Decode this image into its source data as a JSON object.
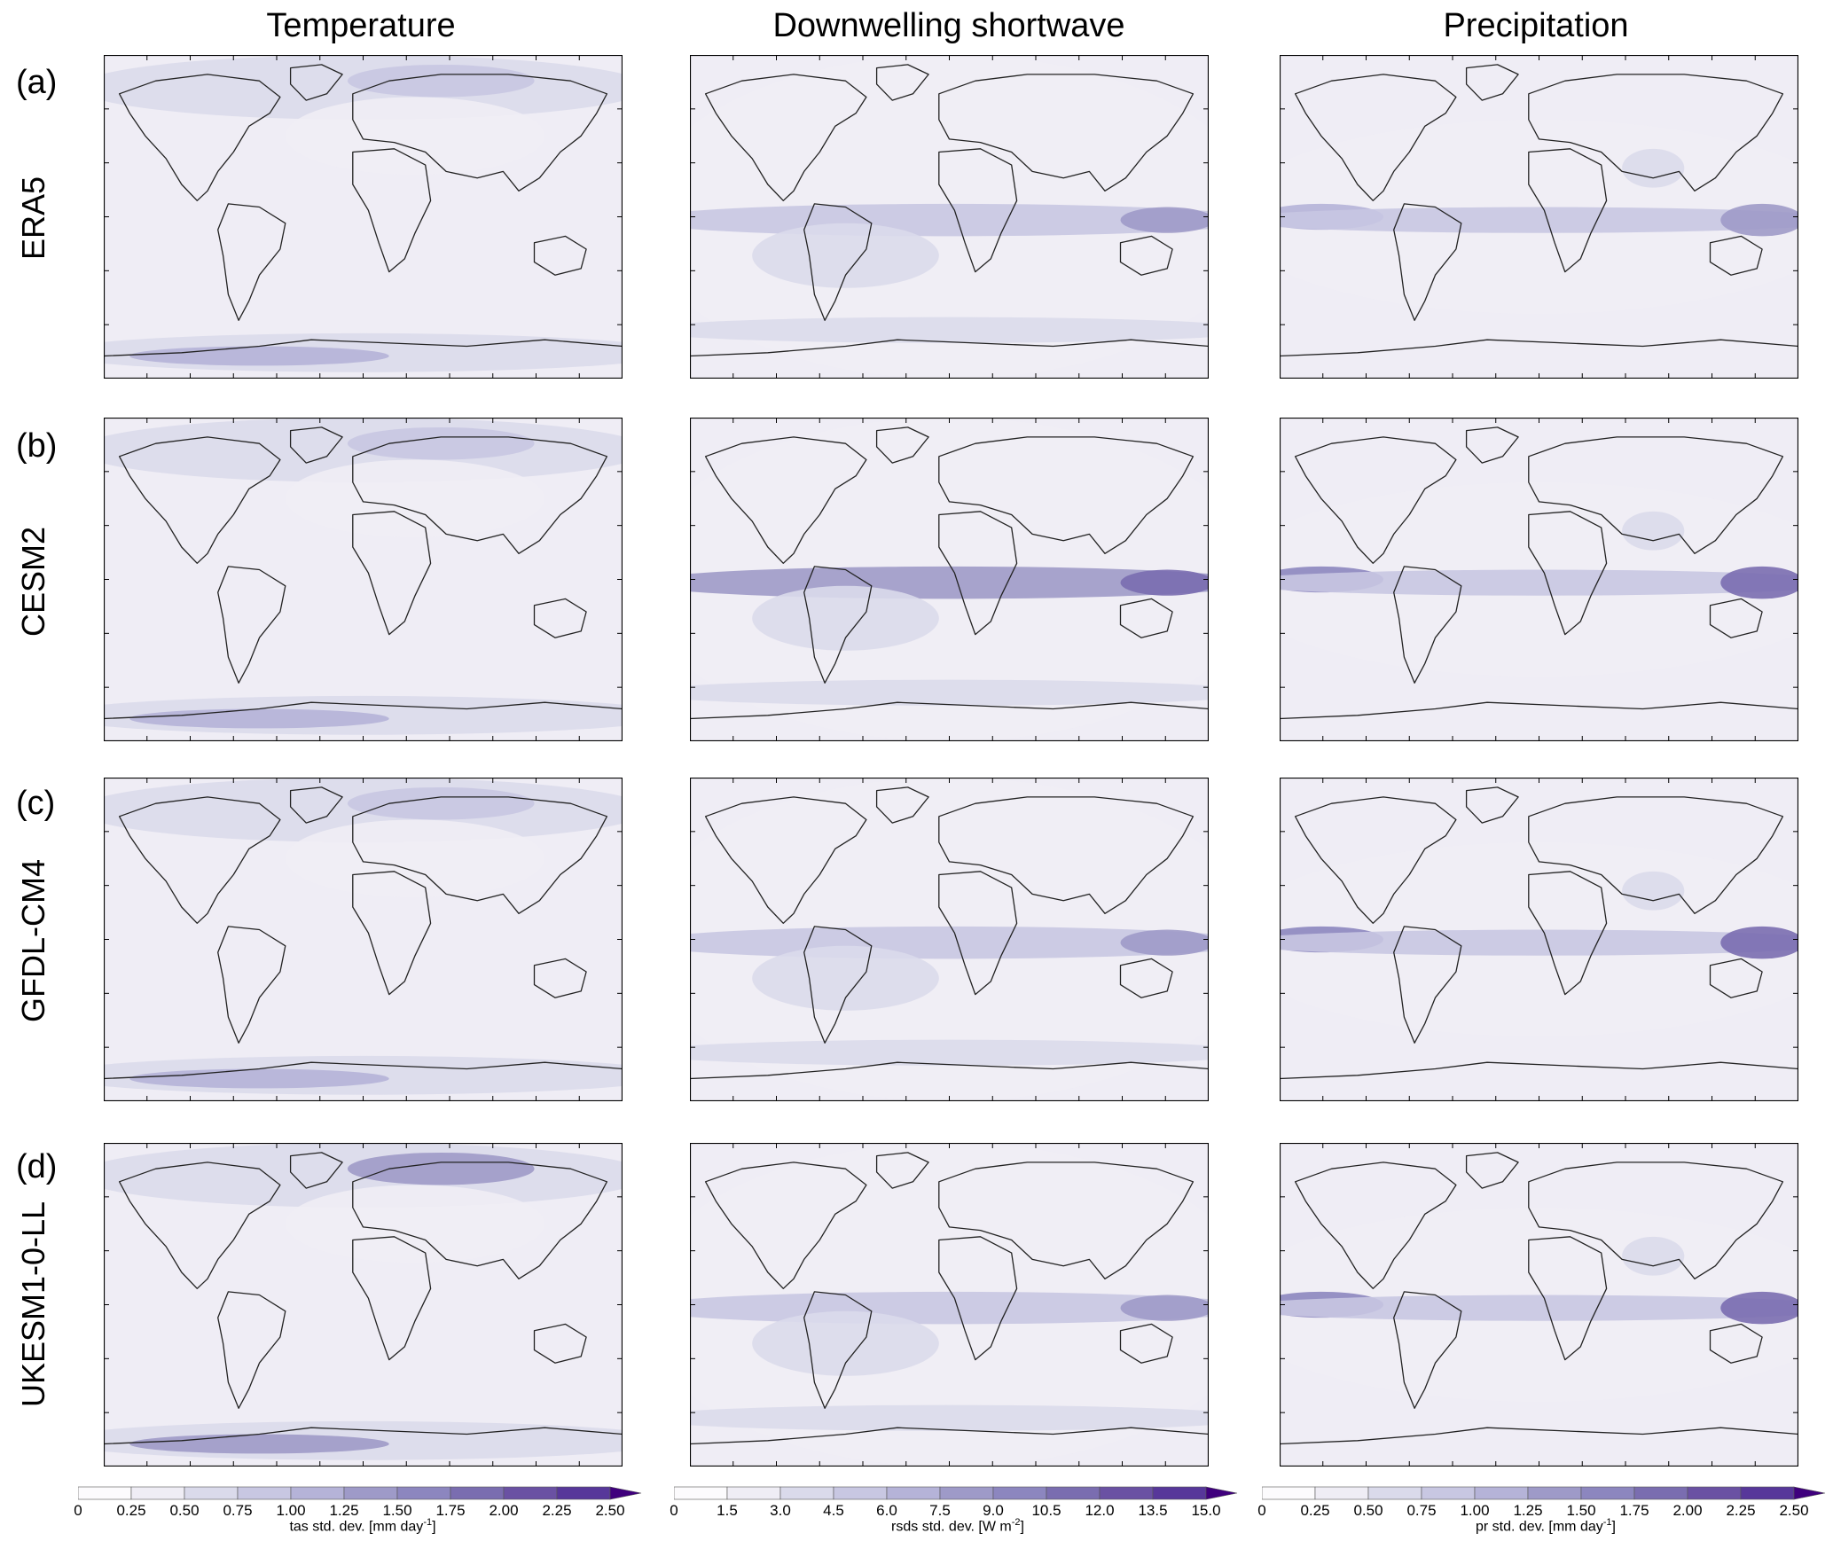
{
  "columns": [
    {
      "title": "Temperature"
    },
    {
      "title": "Downwelling shortwave"
    },
    {
      "title": "Precipitation"
    }
  ],
  "rows": [
    {
      "label": "(a)",
      "name": "ERA5"
    },
    {
      "label": "(b)",
      "name": "CESM2"
    },
    {
      "label": "(c)",
      "name": "GFDL-CM4"
    },
    {
      "label": "(d)",
      "name": "UKESM1-0-LL"
    }
  ],
  "colorbars": [
    {
      "ticks": [
        "0",
        "0.25",
        "0.50",
        "0.75",
        "1.00",
        "1.25",
        "1.50",
        "1.75",
        "2.00",
        "2.25",
        "2.50"
      ],
      "label_prefix": "tas std. dev. [mm day",
      "label_sup": "-1",
      "label_suffix": "]"
    },
    {
      "ticks": [
        "0",
        "1.5",
        "3.0",
        "4.5",
        "6.0",
        "7.5",
        "9.0",
        "10.5",
        "12.0",
        "13.5",
        "15.0"
      ],
      "label_prefix": "rsds std. dev. [W m",
      "label_sup": "-2",
      "label_suffix": "]"
    },
    {
      "ticks": [
        "0",
        "0.25",
        "0.50",
        "0.75",
        "1.00",
        "1.25",
        "1.50",
        "1.75",
        "2.00",
        "2.25",
        "2.50"
      ],
      "label_prefix": "pr std. dev. [mm day",
      "label_sup": "-1",
      "label_suffix": "]"
    }
  ],
  "colors": {
    "scale": [
      "#fcfbfd",
      "#efedf5",
      "#dadaeb",
      "#c8c7e2",
      "#b5b3d8",
      "#9e9ac8",
      "#8c86bf",
      "#7a6db0",
      "#6a51a3",
      "#57379a",
      "#3f007d"
    ],
    "coast": "#222222"
  }
}
